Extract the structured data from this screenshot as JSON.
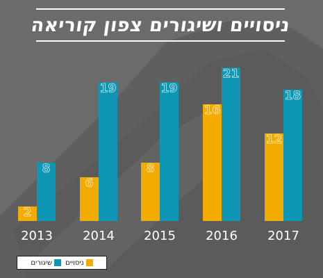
{
  "title": "ניסויים ושיגורים צפון קוריאה",
  "colors": {
    "background": "#6b6b6b",
    "tests": "#f2ab00",
    "launches": "#0e97b4",
    "label_text": "#ffffff"
  },
  "legend": {
    "tests_label": "ניסויים",
    "launches_label": "שיגורים"
  },
  "chart_data": {
    "type": "bar",
    "title": "ניסויים ושיגורים צפון קוריאה",
    "categories": [
      "2013",
      "2014",
      "2015",
      "2016",
      "2017"
    ],
    "series": [
      {
        "name": "ניסויים",
        "color": "#f2ab00",
        "values": [
          2,
          6,
          8,
          16,
          12
        ]
      },
      {
        "name": "שיגורים",
        "color": "#0e97b4",
        "values": [
          8,
          19,
          19,
          21,
          18
        ]
      }
    ],
    "xlabel": "",
    "ylabel": "",
    "ylim": [
      0,
      21
    ],
    "grid": false,
    "legend_position": "bottom-left"
  }
}
